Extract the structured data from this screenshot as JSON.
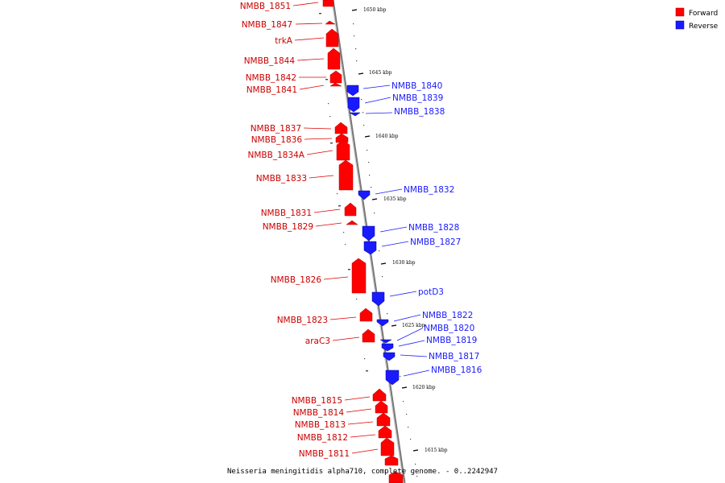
{
  "colors": {
    "forward": "#ff0000",
    "reverse": "#1a1aff",
    "backbone": "#8a8a8a"
  },
  "legend": [
    {
      "name": "Forward",
      "color": "#ff0000"
    },
    {
      "name": "Reverse",
      "color": "#1a1aff"
    }
  ],
  "caption": "Neisseria meningitidis alpha710, complete genome. - 0..2242947",
  "ticks": [
    "1650 kbp",
    "1645 kbp",
    "1640 kbp",
    "1635 kbp",
    "1630 kbp",
    "1625 kbp",
    "1620 kbp",
    "1615 kbp"
  ],
  "genes_forward": [
    "NMBB_1851",
    "NMBB_1847",
    "trkA",
    "NMBB_1844",
    "NMBB_1842",
    "NMBB_1841",
    "NMBB_1837",
    "NMBB_1836",
    "NMBB_1834A",
    "NMBB_1833",
    "NMBB_1831",
    "NMBB_1829",
    "NMBB_1826",
    "NMBB_1823",
    "araC3",
    "NMBB_1815",
    "NMBB_1814",
    "NMBB_1813",
    "NMBB_1812",
    "NMBB_1811"
  ],
  "genes_reverse": [
    "NMBB_1840",
    "NMBB_1839",
    "NMBB_1838",
    "NMBB_1832",
    "NMBB_1828",
    "NMBB_1827",
    "potD3",
    "NMBB_1822",
    "NMBB_1820",
    "NMBB_1819",
    "NMBB_1817",
    "NMBB_1816"
  ]
}
